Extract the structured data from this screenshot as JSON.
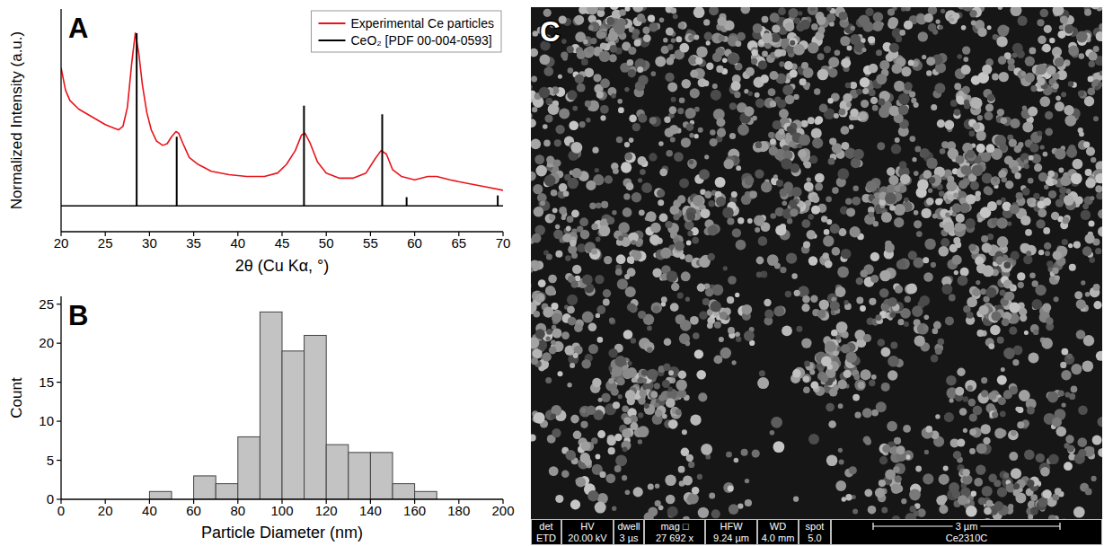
{
  "chart_data": [
    {
      "type": "line",
      "panel_label": "A",
      "x_label": "2θ (Cu Kα, °)",
      "y_label": "Normalized Intensity (a.u.)",
      "xlim": [
        20,
        70
      ],
      "xticks": [
        20,
        25,
        30,
        35,
        40,
        45,
        50,
        55,
        60,
        65,
        70
      ],
      "ylim": [
        -0.15,
        1.14
      ],
      "tick_labels": "x",
      "legend": "top-right",
      "series": [
        {
          "name": "Experimental Ce particles",
          "color": "#e8141b",
          "x": [
            20,
            20.5,
            21,
            22,
            23,
            24,
            25,
            26,
            26.5,
            27,
            27.5,
            28,
            28.4,
            28.8,
            29.2,
            29.7,
            30.2,
            30.8,
            31.5,
            32,
            32.5,
            33,
            33.3,
            33.8,
            34.5,
            35.5,
            37,
            39,
            41,
            43,
            44.5,
            45.5,
            46.5,
            47.2,
            47.6,
            48.2,
            49,
            50,
            51.5,
            53,
            54.5,
            55.5,
            56.2,
            56.8,
            57.5,
            58.5,
            60,
            61.5,
            62.5,
            64,
            66,
            68,
            70
          ],
          "values": [
            0.8,
            0.67,
            0.61,
            0.56,
            0.53,
            0.5,
            0.47,
            0.45,
            0.44,
            0.46,
            0.57,
            0.83,
            1.0,
            0.88,
            0.7,
            0.54,
            0.44,
            0.375,
            0.35,
            0.36,
            0.4,
            0.43,
            0.42,
            0.36,
            0.28,
            0.24,
            0.2,
            0.18,
            0.17,
            0.17,
            0.19,
            0.24,
            0.32,
            0.41,
            0.42,
            0.36,
            0.255,
            0.19,
            0.16,
            0.16,
            0.19,
            0.27,
            0.32,
            0.3,
            0.21,
            0.17,
            0.15,
            0.17,
            0.17,
            0.15,
            0.13,
            0.11,
            0.09
          ]
        },
        {
          "name": "CeO₂ [PDF 00-004-0593]",
          "color": "#000000",
          "type": "stem",
          "x": [
            28.55,
            33.08,
            47.48,
            56.33,
            59.09,
            69.4
          ],
          "values": [
            1.0,
            0.4,
            0.58,
            0.53,
            0.05,
            0.06
          ]
        }
      ]
    },
    {
      "type": "histogram",
      "panel_label": "B",
      "x_label": "Particle Diameter (nm)",
      "y_label": "Count",
      "bins": [
        40,
        50,
        60,
        70,
        80,
        90,
        100,
        110,
        120,
        130,
        140,
        150,
        160,
        170
      ],
      "values": [
        1,
        0,
        3,
        2,
        8,
        24,
        19,
        21,
        7,
        6,
        6,
        2,
        1
      ],
      "color": "#c3c3c3",
      "xlim": [
        0,
        200
      ],
      "xticks": [
        0,
        20,
        40,
        60,
        80,
        100,
        120,
        140,
        160,
        180,
        200
      ],
      "ylim": [
        0,
        26
      ],
      "yticks": [
        0,
        5,
        10,
        15,
        20,
        25
      ]
    },
    {
      "type": "image",
      "panel_label": "C",
      "info_bar": {
        "headers": [
          "det",
          "HV",
          "dwell",
          "mag □",
          "HFW",
          "WD",
          "spot"
        ],
        "values": [
          "ETD",
          "20.00 kV",
          "3 µs",
          "27 692 x",
          "9.24 µm",
          "4.0 mm",
          "5.0"
        ],
        "scale_bar": "3 µm",
        "sample": "Ce2310C"
      }
    }
  ]
}
